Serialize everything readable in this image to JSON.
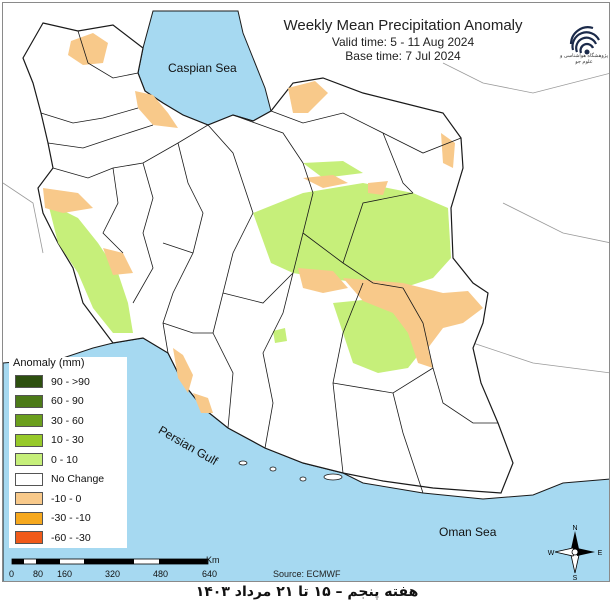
{
  "title": "Weekly Mean Precipitation Anomaly",
  "valid_time": "Valid time: 5 - 11 Aug 2024",
  "base_time": "Base time: 7 Jul 2024",
  "logo_text": "پژوهشگاه هواشناسی و علوم جو",
  "labels": {
    "caspian": "Caspian Sea",
    "persian_gulf": "Persian Gulf",
    "oman_sea": "Oman Sea"
  },
  "legend": {
    "title": "Anomaly (mm)",
    "items": [
      {
        "label": "90 - >90",
        "color": "#2d4f0f"
      },
      {
        "label": "60 - 90",
        "color": "#4c7a18"
      },
      {
        "label": "30 - 60",
        "color": "#6b9f1d"
      },
      {
        "label": "10 - 30",
        "color": "#97c92a"
      },
      {
        "label": "0 - 10",
        "color": "#c6ef7a"
      },
      {
        "label": "No Change",
        "color": "#ffffff"
      },
      {
        "label": "-10 - 0",
        "color": "#f8c98a"
      },
      {
        "label": "-30 - -10",
        "color": "#f6a81e"
      },
      {
        "label": "-60 - -30",
        "color": "#f05a1a"
      }
    ]
  },
  "scale": {
    "unit": "Km",
    "ticks": [
      "0",
      "80",
      "160",
      "320",
      "480",
      "640"
    ]
  },
  "source": "Source: ECMWF",
  "compass": {
    "n": "N",
    "s": "S",
    "e": "E",
    "w": "W"
  },
  "caption": "هفته پنجم – ۱۵ تا ۲۱ مرداد ۱۴۰۳",
  "colors": {
    "water": "#a6d9f1",
    "land": "#ffffff",
    "border": "#1a1a1a",
    "light_green": "#c6ef7a",
    "light_orange": "#f8c98a"
  }
}
